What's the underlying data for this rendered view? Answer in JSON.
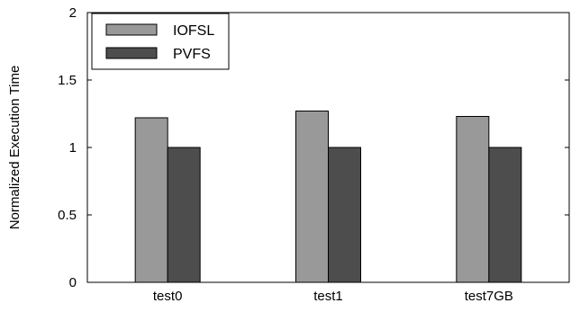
{
  "chart_data": {
    "type": "bar",
    "title": "",
    "xlabel": "",
    "ylabel": "Normalized Execution Time",
    "categories": [
      "test0",
      "test1",
      "test7GB"
    ],
    "series": [
      {
        "name": "IOFSL",
        "values": [
          1.22,
          1.27,
          1.23
        ],
        "color": "#999999"
      },
      {
        "name": "PVFS",
        "values": [
          1.0,
          1.0,
          1.0
        ],
        "color": "#4d4d4d"
      }
    ],
    "ylim": [
      0,
      2
    ],
    "yticks": [
      0,
      0.5,
      1,
      1.5,
      2
    ],
    "ytick_labels": [
      "0",
      "0.5",
      "1",
      "1.5",
      "2"
    ],
    "legend": "top-left",
    "grid": false
  }
}
